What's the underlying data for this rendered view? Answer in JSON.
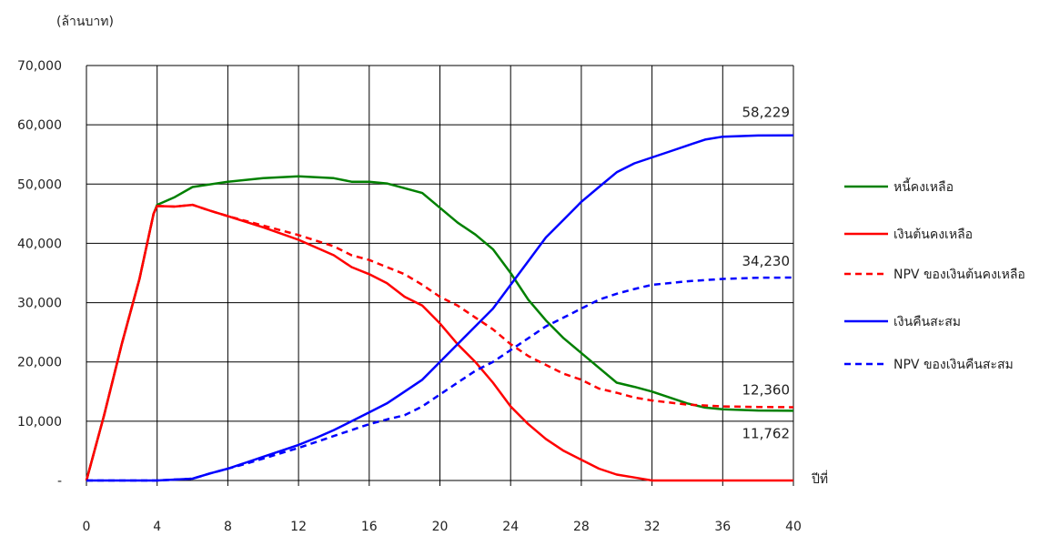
{
  "chart_data": {
    "type": "line",
    "unit_label": "(ล้านบาท)",
    "xlabel": "ปีที่",
    "xlim": [
      0,
      40
    ],
    "ylim": [
      0,
      70000
    ],
    "x_ticks": [
      "0",
      "4",
      "8",
      "12",
      "16",
      "20",
      "24",
      "28",
      "32",
      "36",
      "40"
    ],
    "y_ticks": [
      "-",
      "10,000",
      "20,000",
      "30,000",
      "40,000",
      "50,000",
      "60,000",
      "70,000"
    ],
    "grid": true,
    "legend_position": "right",
    "series": [
      {
        "name": "หนี้คงเหลือ",
        "color": "#008000",
        "dash": false,
        "points": [
          [
            0,
            0
          ],
          [
            1,
            11000
          ],
          [
            2,
            23000
          ],
          [
            3,
            34000
          ],
          [
            3.8,
            45000
          ],
          [
            4,
            46500
          ],
          [
            5,
            47800
          ],
          [
            6,
            49500
          ],
          [
            8,
            50400
          ],
          [
            10,
            51000
          ],
          [
            12,
            51300
          ],
          [
            14,
            51000
          ],
          [
            15,
            50400
          ],
          [
            16,
            50400
          ],
          [
            17,
            50100
          ],
          [
            18,
            49300
          ],
          [
            19,
            48500
          ],
          [
            20,
            46000
          ],
          [
            21,
            43500
          ],
          [
            22,
            41500
          ],
          [
            23,
            39000
          ],
          [
            24,
            35000
          ],
          [
            25,
            30500
          ],
          [
            26,
            27000
          ],
          [
            27,
            24000
          ],
          [
            28,
            21500
          ],
          [
            29,
            19000
          ],
          [
            30,
            16500
          ],
          [
            31,
            15800
          ],
          [
            32,
            15000
          ],
          [
            33,
            14000
          ],
          [
            34,
            13000
          ],
          [
            35,
            12300
          ],
          [
            36,
            12000
          ],
          [
            38,
            11800
          ],
          [
            40,
            11762
          ]
        ]
      },
      {
        "name": "เงินต้นคงเหลือ",
        "color": "#ff0000",
        "dash": false,
        "points": [
          [
            0,
            0
          ],
          [
            1,
            11000
          ],
          [
            2,
            23000
          ],
          [
            3,
            34000
          ],
          [
            3.8,
            45000
          ],
          [
            4,
            46300
          ],
          [
            5,
            46200
          ],
          [
            6,
            46500
          ],
          [
            7,
            45500
          ],
          [
            8,
            44600
          ],
          [
            10,
            42700
          ],
          [
            12,
            40600
          ],
          [
            13,
            39300
          ],
          [
            14,
            38000
          ],
          [
            15,
            36000
          ],
          [
            16,
            34800
          ],
          [
            17,
            33300
          ],
          [
            18,
            31000
          ],
          [
            19,
            29500
          ],
          [
            20,
            26500
          ],
          [
            21,
            23000
          ],
          [
            22,
            20000
          ],
          [
            23,
            16500
          ],
          [
            24,
            12500
          ],
          [
            25,
            9500
          ],
          [
            26,
            7000
          ],
          [
            27,
            5000
          ],
          [
            28,
            3500
          ],
          [
            29,
            2000
          ],
          [
            30,
            1000
          ],
          [
            31,
            500
          ],
          [
            32,
            0
          ],
          [
            40,
            0
          ]
        ]
      },
      {
        "name": "NPV ของเงินต้นคงเหลือ",
        "color": "#ff0000",
        "dash": true,
        "points": [
          [
            0,
            0
          ],
          [
            1,
            11000
          ],
          [
            2,
            23000
          ],
          [
            3,
            34000
          ],
          [
            3.8,
            45000
          ],
          [
            4,
            46300
          ],
          [
            5,
            46200
          ],
          [
            6,
            46500
          ],
          [
            7,
            45500
          ],
          [
            8,
            44600
          ],
          [
            10,
            43000
          ],
          [
            12,
            41400
          ],
          [
            14,
            39500
          ],
          [
            15,
            38000
          ],
          [
            16,
            37200
          ],
          [
            17,
            36000
          ],
          [
            18,
            34800
          ],
          [
            19,
            33000
          ],
          [
            20,
            31000
          ],
          [
            21,
            29500
          ],
          [
            22,
            27500
          ],
          [
            23,
            25500
          ],
          [
            24,
            23000
          ],
          [
            25,
            21000
          ],
          [
            26,
            19500
          ],
          [
            27,
            18000
          ],
          [
            28,
            17000
          ],
          [
            29,
            15500
          ],
          [
            30,
            14800
          ],
          [
            31,
            14000
          ],
          [
            32,
            13500
          ],
          [
            34,
            12800
          ],
          [
            36,
            12500
          ],
          [
            38,
            12400
          ],
          [
            40,
            12360
          ]
        ]
      },
      {
        "name": "เงินคืนสะสม",
        "color": "#0000ff",
        "dash": false,
        "points": [
          [
            0,
            0
          ],
          [
            4,
            0
          ],
          [
            6,
            300
          ],
          [
            7,
            1200
          ],
          [
            8,
            2000
          ],
          [
            9,
            3000
          ],
          [
            10,
            4000
          ],
          [
            11,
            5000
          ],
          [
            12,
            6000
          ],
          [
            13,
            7200
          ],
          [
            14,
            8500
          ],
          [
            15,
            10000
          ],
          [
            16,
            11500
          ],
          [
            17,
            13000
          ],
          [
            18,
            15000
          ],
          [
            19,
            17000
          ],
          [
            20,
            20000
          ],
          [
            21,
            23000
          ],
          [
            22,
            26000
          ],
          [
            23,
            29000
          ],
          [
            24,
            33000
          ],
          [
            25,
            37000
          ],
          [
            26,
            41000
          ],
          [
            27,
            44000
          ],
          [
            28,
            47000
          ],
          [
            29,
            49500
          ],
          [
            30,
            52000
          ],
          [
            31,
            53500
          ],
          [
            32,
            54500
          ],
          [
            33,
            55500
          ],
          [
            34,
            56500
          ],
          [
            35,
            57500
          ],
          [
            36,
            58000
          ],
          [
            38,
            58200
          ],
          [
            40,
            58229
          ]
        ]
      },
      {
        "name": "NPV ของเงินคืนสะสม",
        "color": "#0000ff",
        "dash": true,
        "points": [
          [
            0,
            0
          ],
          [
            4,
            0
          ],
          [
            6,
            300
          ],
          [
            7,
            1200
          ],
          [
            8,
            2000
          ],
          [
            9,
            2800
          ],
          [
            10,
            3700
          ],
          [
            11,
            4600
          ],
          [
            12,
            5500
          ],
          [
            13,
            6500
          ],
          [
            14,
            7500
          ],
          [
            15,
            8500
          ],
          [
            16,
            9500
          ],
          [
            17,
            10300
          ],
          [
            18,
            11000
          ],
          [
            19,
            12500
          ],
          [
            20,
            14500
          ],
          [
            21,
            16500
          ],
          [
            22,
            18500
          ],
          [
            23,
            20000
          ],
          [
            24,
            22000
          ],
          [
            25,
            24000
          ],
          [
            26,
            26000
          ],
          [
            27,
            27500
          ],
          [
            28,
            29000
          ],
          [
            29,
            30500
          ],
          [
            30,
            31500
          ],
          [
            31,
            32300
          ],
          [
            32,
            33000
          ],
          [
            34,
            33600
          ],
          [
            36,
            34000
          ],
          [
            38,
            34200
          ],
          [
            40,
            34230
          ]
        ]
      }
    ],
    "annotations": [
      {
        "text": "58,229",
        "x": 40,
        "y": 58229
      },
      {
        "text": "34,230",
        "x": 40,
        "y": 34230
      },
      {
        "text": "12,360",
        "x": 40,
        "y": 12360
      },
      {
        "text": "11,762",
        "x": 40,
        "y": 11762
      }
    ]
  }
}
